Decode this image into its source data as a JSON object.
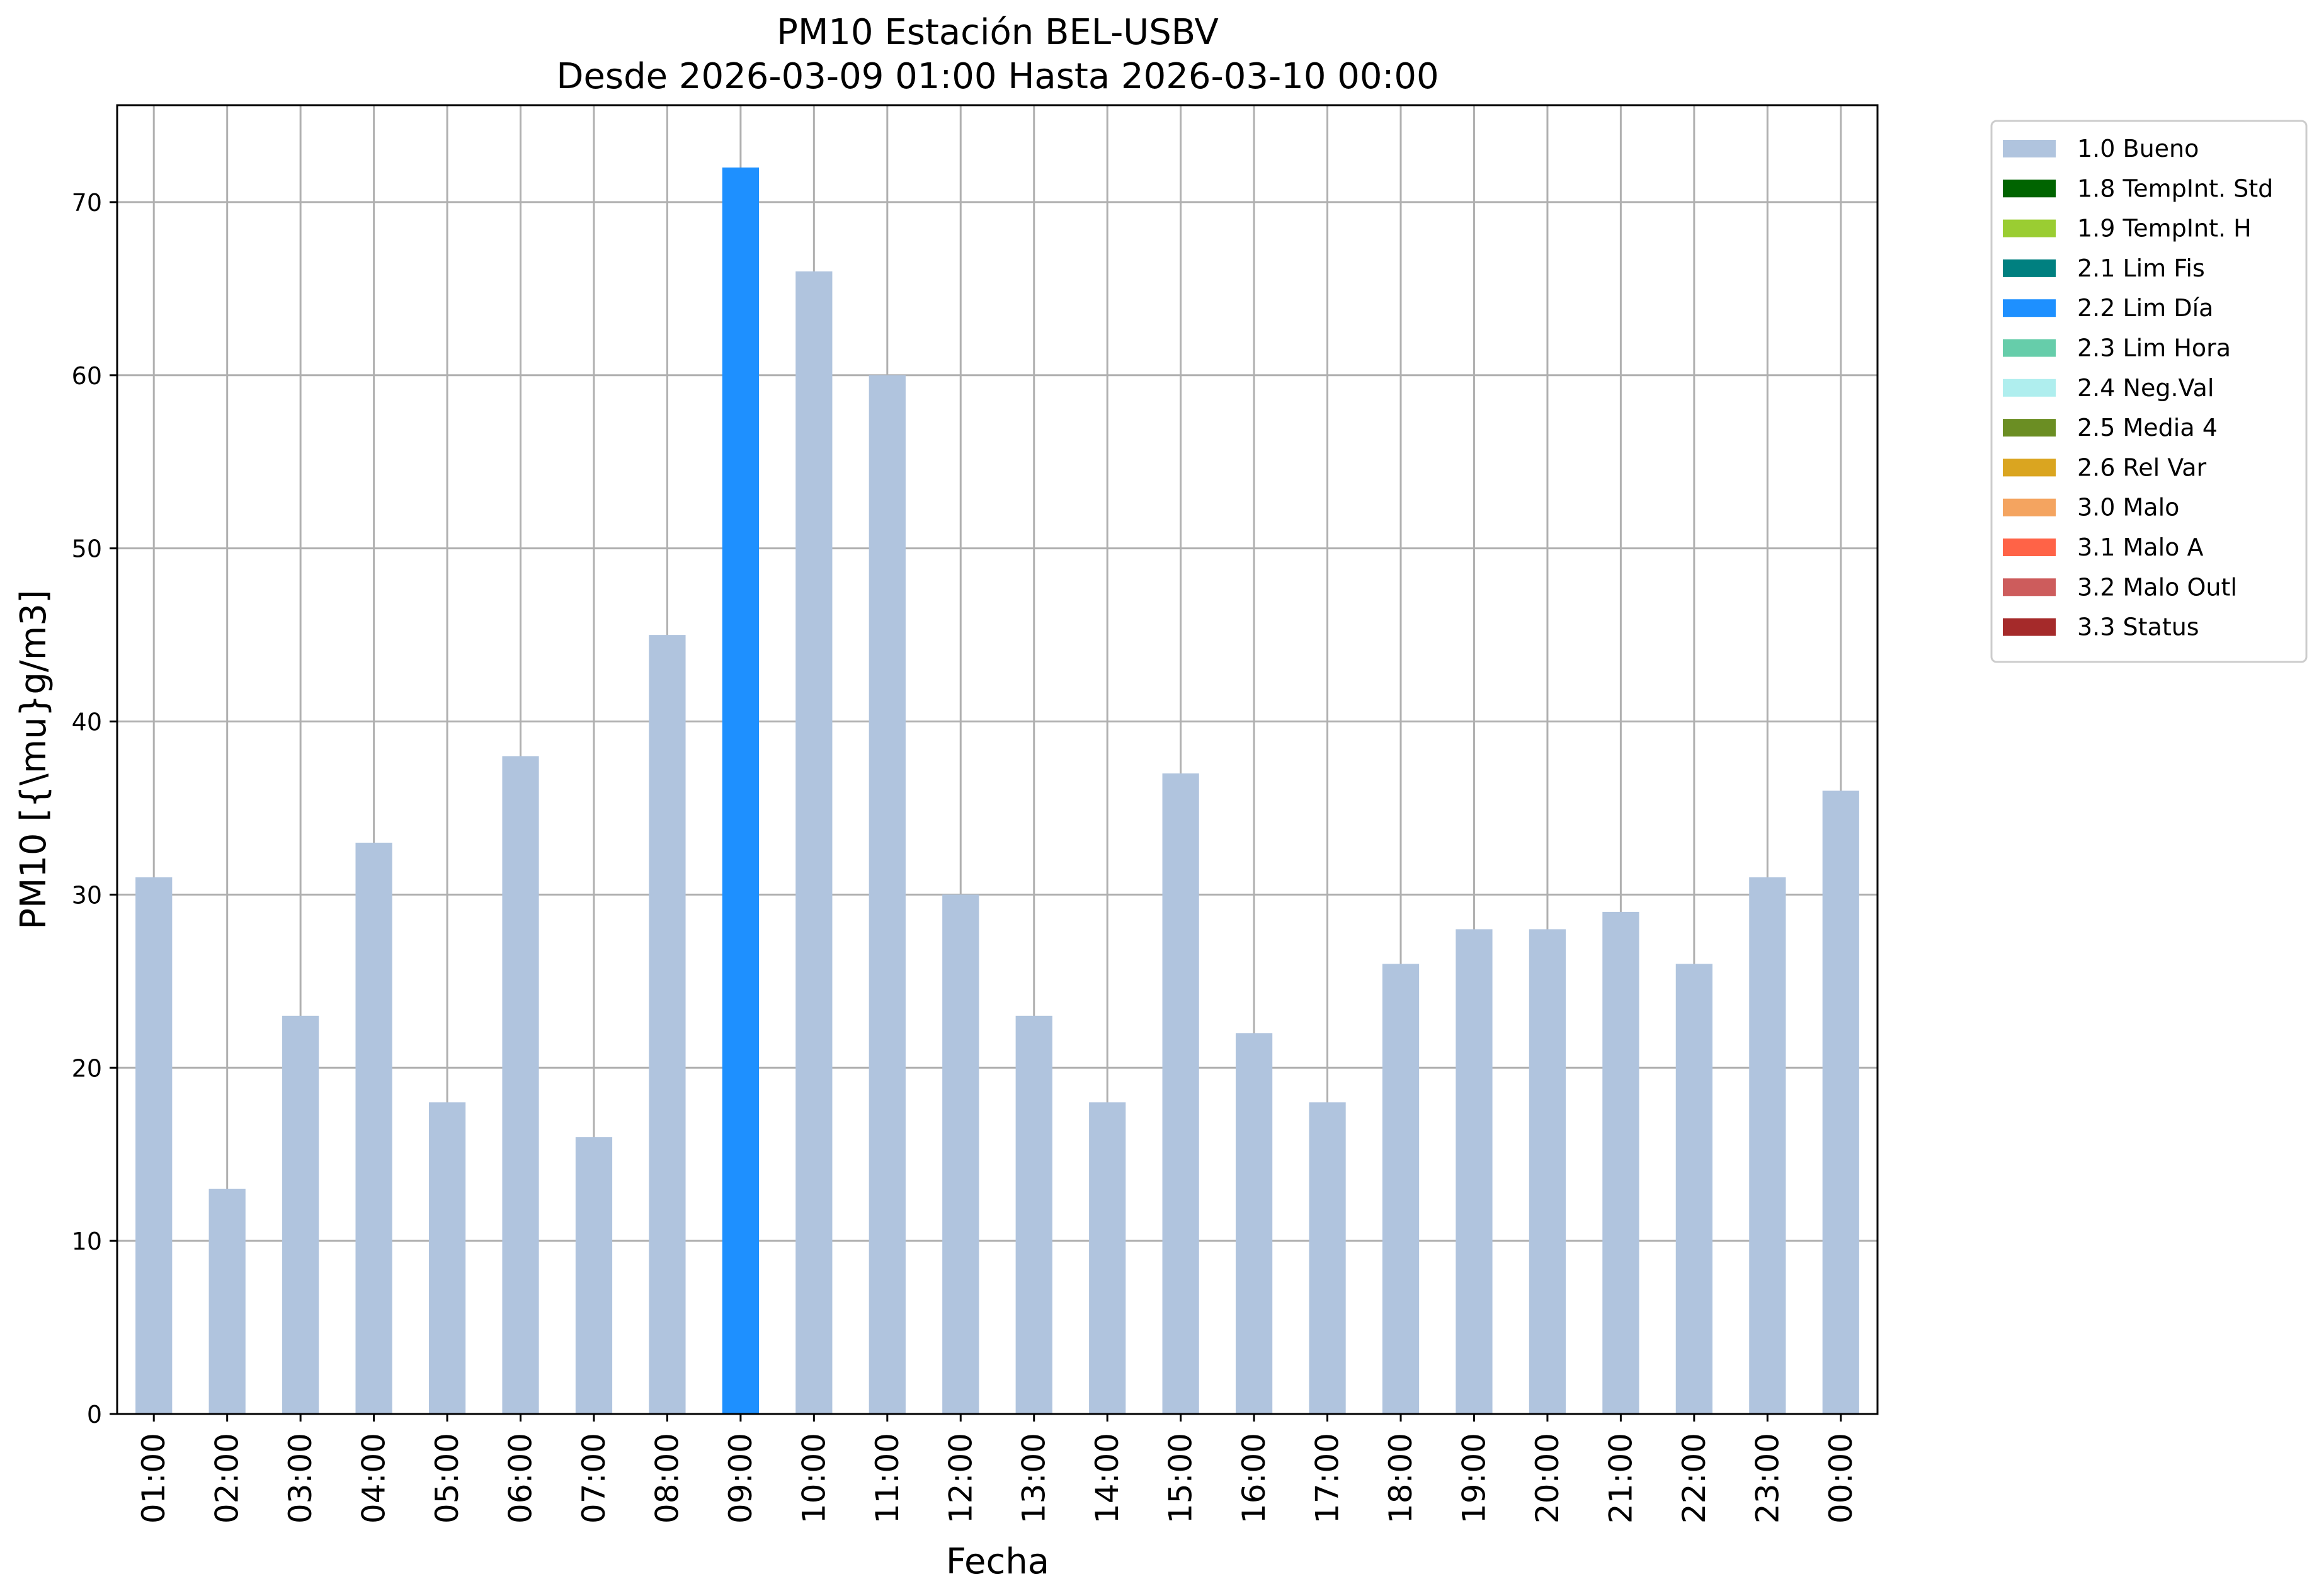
{
  "chart_data": {
    "type": "bar",
    "title": "PM10 Estación BEL-USBV",
    "subtitle": "Desde 2026-03-09 01:00 Hasta 2026-03-10 00:00",
    "xlabel": "Fecha",
    "ylabel": "PM10 [{\\mu}g/m3]",
    "ylim": [
      0,
      75.6
    ],
    "yticks": [
      0,
      10,
      20,
      30,
      40,
      50,
      60,
      70
    ],
    "grid": true,
    "legend_position": "outside-right",
    "categories": [
      "01:00",
      "02:00",
      "03:00",
      "04:00",
      "05:00",
      "06:00",
      "07:00",
      "08:00",
      "09:00",
      "10:00",
      "11:00",
      "12:00",
      "13:00",
      "14:00",
      "15:00",
      "16:00",
      "17:00",
      "18:00",
      "19:00",
      "20:00",
      "21:00",
      "22:00",
      "23:00",
      "00:00"
    ],
    "values": [
      31,
      13,
      23,
      33,
      18,
      38,
      16,
      45,
      72,
      66,
      60,
      30,
      23,
      18,
      37,
      22,
      18,
      26,
      28,
      28,
      29,
      26,
      31,
      36
    ],
    "flags": [
      "1.0 Bueno",
      "1.0 Bueno",
      "1.0 Bueno",
      "1.0 Bueno",
      "1.0 Bueno",
      "1.0 Bueno",
      "1.0 Bueno",
      "1.0 Bueno",
      "2.2 Lim Día",
      "1.0 Bueno",
      "1.0 Bueno",
      "1.0 Bueno",
      "1.0 Bueno",
      "1.0 Bueno",
      "1.0 Bueno",
      "1.0 Bueno",
      "1.0 Bueno",
      "1.0 Bueno",
      "1.0 Bueno",
      "1.0 Bueno",
      "1.0 Bueno",
      "1.0 Bueno",
      "1.0 Bueno",
      "1.0 Bueno"
    ],
    "legend": [
      {
        "label": "1.0 Bueno",
        "color": "#b0c4de"
      },
      {
        "label": "1.8 TempInt. Std",
        "color": "#006400"
      },
      {
        "label": "1.9 TempInt. H",
        "color": "#9acd32"
      },
      {
        "label": "2.1 Lim Fis",
        "color": "#008080"
      },
      {
        "label": "2.2 Lim Día",
        "color": "#1e90ff"
      },
      {
        "label": "2.3 Lim Hora",
        "color": "#66cdaa"
      },
      {
        "label": "2.4 Neg.Val",
        "color": "#afeeee"
      },
      {
        "label": "2.5 Media 4",
        "color": "#6b8e23"
      },
      {
        "label": "2.6 Rel Var",
        "color": "#daa520"
      },
      {
        "label": "3.0 Malo",
        "color": "#f4a460"
      },
      {
        "label": "3.1 Malo A",
        "color": "#ff6347"
      },
      {
        "label": "3.2 Malo Outl",
        "color": "#cd5c5c"
      },
      {
        "label": "3.3 Status",
        "color": "#a52a2a"
      }
    ]
  }
}
